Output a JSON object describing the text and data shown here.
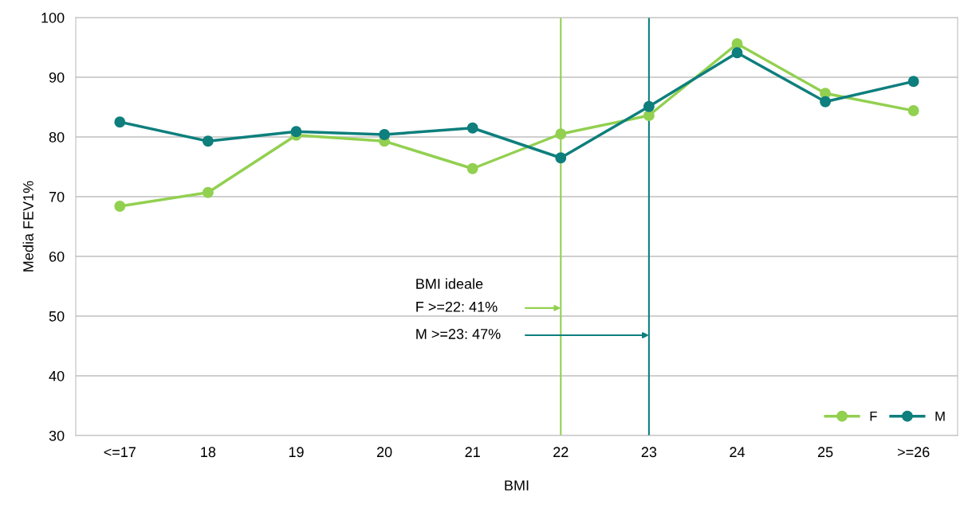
{
  "chart_data": {
    "type": "line",
    "xlabel": "BMI",
    "ylabel": "Media FEV1%",
    "categories": [
      "<=17",
      "18",
      "19",
      "20",
      "21",
      "22",
      "23",
      "24",
      "25",
      ">=26"
    ],
    "series": [
      {
        "name": "F",
        "color": "#92d050",
        "values": [
          68.4,
          70.7,
          80.3,
          79.3,
          74.7,
          80.5,
          83.6,
          95.6,
          87.3,
          84.4
        ]
      },
      {
        "name": "M",
        "color": "#0e7f7d",
        "values": [
          82.5,
          79.3,
          80.9,
          80.4,
          81.5,
          76.5,
          85.1,
          94.1,
          85.9,
          89.3
        ]
      }
    ],
    "ylim": [
      30,
      100
    ],
    "yticks": [
      30,
      40,
      50,
      60,
      70,
      80,
      90,
      100
    ],
    "grid": "y",
    "legend": "bottom right",
    "marker": "circle",
    "line_style": "solid",
    "ref_lines": [
      {
        "axis": "x",
        "value": "22",
        "color": "#92d050"
      },
      {
        "axis": "x",
        "value": "23",
        "color": "#0e7f7d"
      }
    ],
    "annotations": [
      "BMI ideale",
      "F >=22: 41%",
      "M >=23: 47%"
    ]
  }
}
